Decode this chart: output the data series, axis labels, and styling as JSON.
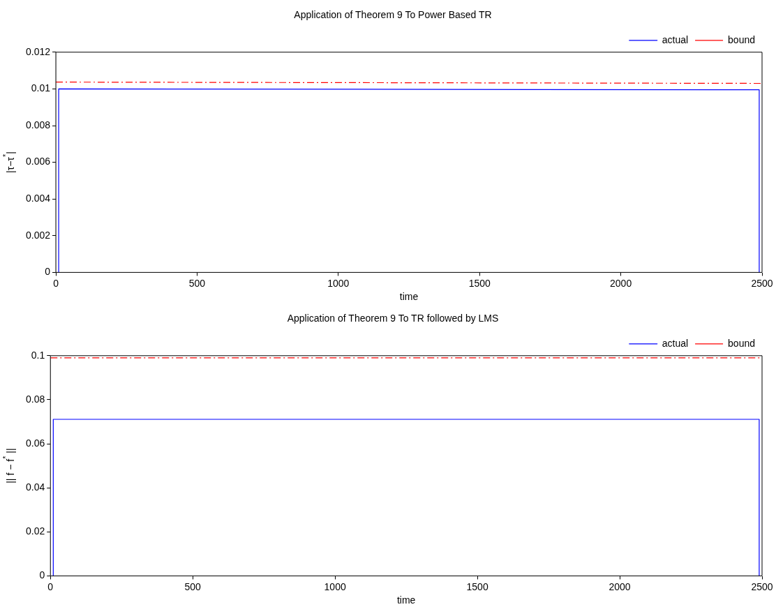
{
  "chart_data": [
    {
      "type": "line",
      "title": "Application of Theorem 9 To Power Based TR",
      "xlabel": "time",
      "ylabel": "|τ−τ$^{*}$|",
      "xlim": [
        0,
        2500
      ],
      "xticks": [
        0,
        500,
        1000,
        1500,
        2000,
        2500
      ],
      "ylim": [
        0,
        0.012
      ],
      "yticks": [
        0,
        0.002,
        0.004,
        0.006,
        0.008,
        0.01,
        0.012
      ],
      "grid": false,
      "legend": "top right",
      "marker": "none",
      "series": [
        {
          "name": "actual",
          "color": "#0000ff",
          "line_style": "solid",
          "x": [
            10,
            10,
            2490,
            2490
          ],
          "values": [
            0,
            0.01,
            0.00995,
            0
          ]
        },
        {
          "name": "bound",
          "color": "#ff0000",
          "line_style": "dashed",
          "x": [
            0,
            2500
          ],
          "values": [
            0.01037,
            0.0103
          ]
        }
      ]
    },
    {
      "type": "line",
      "title": "Application of Theorem 9 To TR followed by LMS",
      "xlabel": "time",
      "ylabel": "|| f − f$^{*}$ ||",
      "xlim": [
        0,
        2500
      ],
      "xticks": [
        0,
        500,
        1000,
        1500,
        2000,
        2500
      ],
      "ylim": [
        0,
        0.1
      ],
      "yticks": [
        0,
        0.02,
        0.04,
        0.06,
        0.08,
        0.1
      ],
      "grid": false,
      "legend": "top right",
      "marker": "none",
      "series": [
        {
          "name": "actual",
          "color": "#0000ff",
          "line_style": "solid",
          "x": [
            10,
            10,
            2490,
            2490
          ],
          "values": [
            0,
            0.0711,
            0.0711,
            0
          ]
        },
        {
          "name": "bound",
          "color": "#ff0000",
          "line_style": "dashed",
          "x": [
            0,
            2500
          ],
          "values": [
            0.099,
            0.099
          ]
        }
      ]
    }
  ]
}
